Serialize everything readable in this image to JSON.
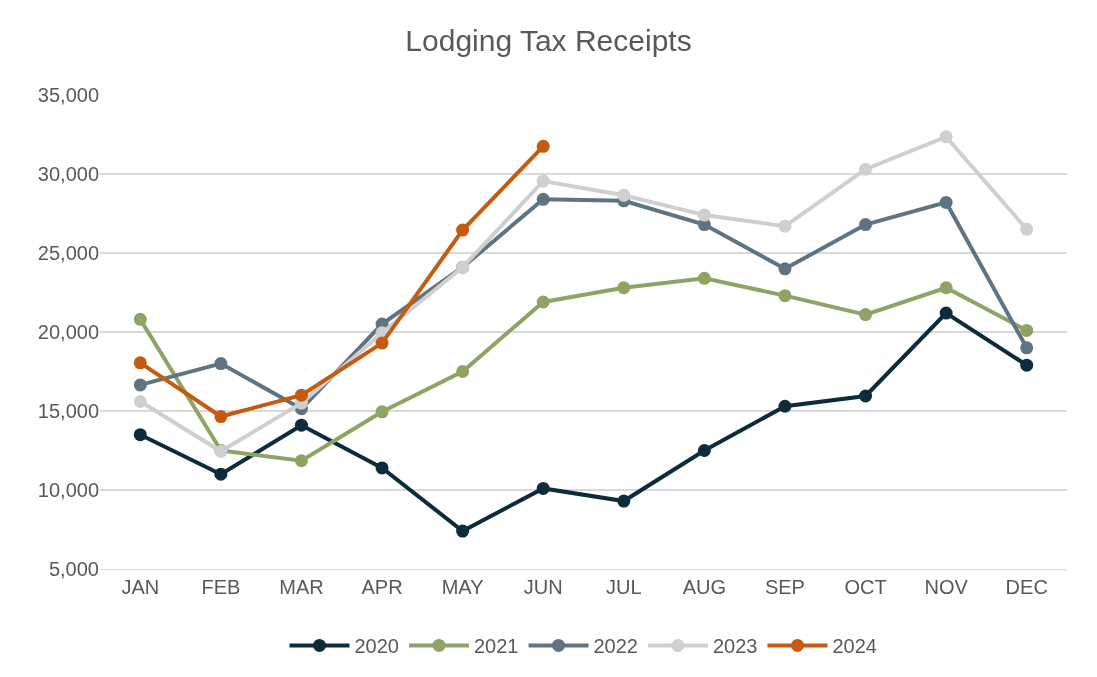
{
  "chart_data": {
    "type": "line",
    "title": "Lodging Tax Receipts",
    "categories": [
      "JAN",
      "FEB",
      "MAR",
      "APR",
      "MAY",
      "JUN",
      "JUL",
      "AUG",
      "SEP",
      "OCT",
      "NOV",
      "DEC"
    ],
    "series": [
      {
        "name": "2020",
        "color": "#0d2c3b",
        "values": [
          13500,
          11000,
          14100,
          11400,
          7400,
          10100,
          9300,
          12500,
          15300,
          15950,
          21200,
          17900
        ]
      },
      {
        "name": "2021",
        "color": "#8fa464",
        "values": [
          20800,
          12500,
          11850,
          14950,
          17500,
          21900,
          22800,
          23400,
          22300,
          21100,
          22800,
          20100
        ]
      },
      {
        "name": "2022",
        "color": "#5f7482",
        "values": [
          16650,
          18000,
          15150,
          20500,
          24100,
          28400,
          28300,
          26800,
          24000,
          26800,
          28200,
          19000
        ]
      },
      {
        "name": "2023",
        "color": "#cfcfcf",
        "values": [
          15600,
          12450,
          15500,
          19950,
          24100,
          29550,
          28650,
          27400,
          26700,
          30300,
          32350,
          26500
        ]
      },
      {
        "name": "2024",
        "color": "#c55a11",
        "values": [
          18050,
          14650,
          16000,
          19300,
          26450,
          31750,
          null,
          null,
          null,
          null,
          null,
          null
        ]
      }
    ],
    "ylim": [
      5000,
      35000
    ],
    "yticks": [
      {
        "value": 5000,
        "label": "5,000"
      },
      {
        "value": 10000,
        "label": "10,000"
      },
      {
        "value": 15000,
        "label": "15,000"
      },
      {
        "value": 20000,
        "label": "20,000"
      },
      {
        "value": 25000,
        "label": "25,000"
      },
      {
        "value": 30000,
        "label": "30,000"
      },
      {
        "value": 35000,
        "label": "35,000"
      }
    ],
    "grid": "y",
    "legend": "bottom",
    "marker": "circle",
    "line_style": "solid"
  }
}
